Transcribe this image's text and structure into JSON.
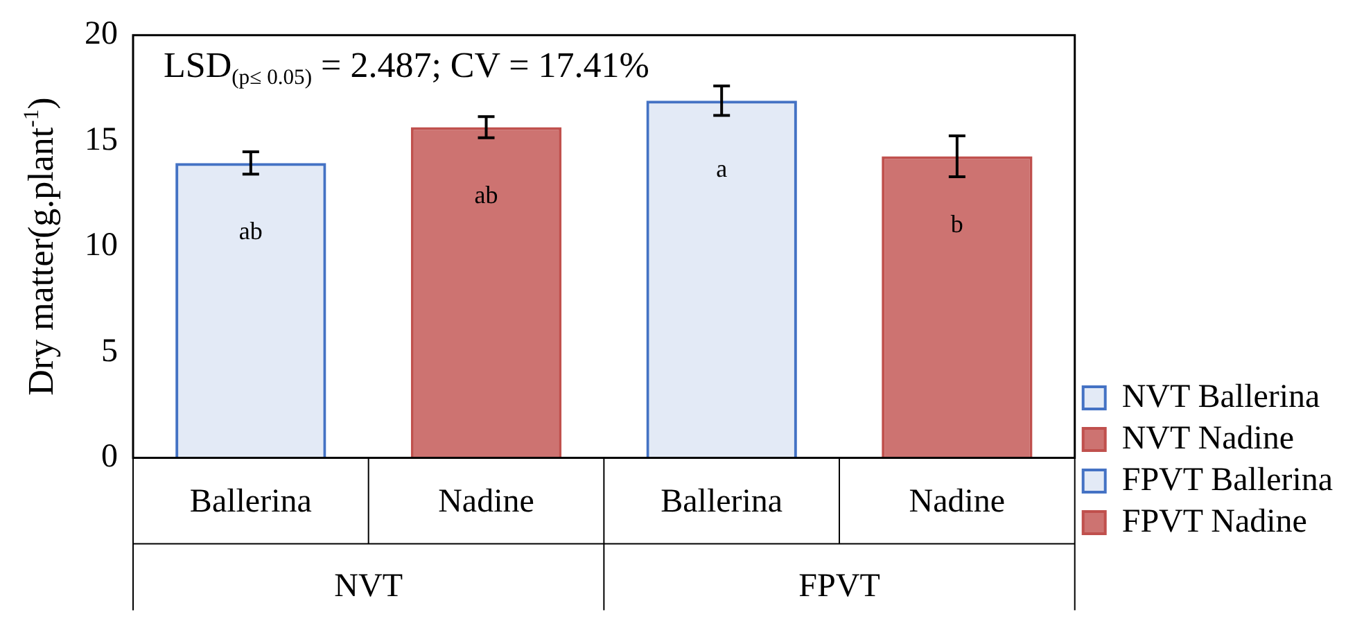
{
  "chart_data": {
    "type": "bar",
    "ylabel": "Dry matter(g.plant$^{-1}$)",
    "categories": [
      "Ballerina",
      "Nadine",
      "Ballerina",
      "Nadine"
    ],
    "series": [
      {
        "name": "NVT Ballerina",
        "color": "#4472c4",
        "values": [
          13.95,
          null,
          null,
          null
        ],
        "errors": [
          0.53,
          null,
          null,
          null
        ]
      },
      {
        "name": "NVT Nadine",
        "color": "#c0504d",
        "values": [
          null,
          15.65,
          null,
          null
        ],
        "errors": [
          null,
          0.5,
          null,
          null
        ]
      },
      {
        "name": "FPVT Ballerina",
        "color": "#4472c4",
        "values": [
          null,
          null,
          16.9,
          null
        ],
        "errors": [
          null,
          null,
          0.7,
          null
        ]
      },
      {
        "name": "FPVT Nadine",
        "color": "#c0504d",
        "values": [
          null,
          null,
          null,
          14.27
        ],
        "errors": [
          null,
          null,
          null,
          0.97
        ]
      }
    ],
    "ylim": [
      0,
      20
    ],
    "yticks": [
      0,
      5,
      10,
      15,
      20
    ],
    "grid": false,
    "legend": "bottom right",
    "annotations": [
      "LSD$_{(p≤ 0.05)}$ = 2.487; CV = 17.41%",
      "ab",
      "ab",
      "a",
      "b",
      "NVT",
      "FPVT"
    ]
  }
}
